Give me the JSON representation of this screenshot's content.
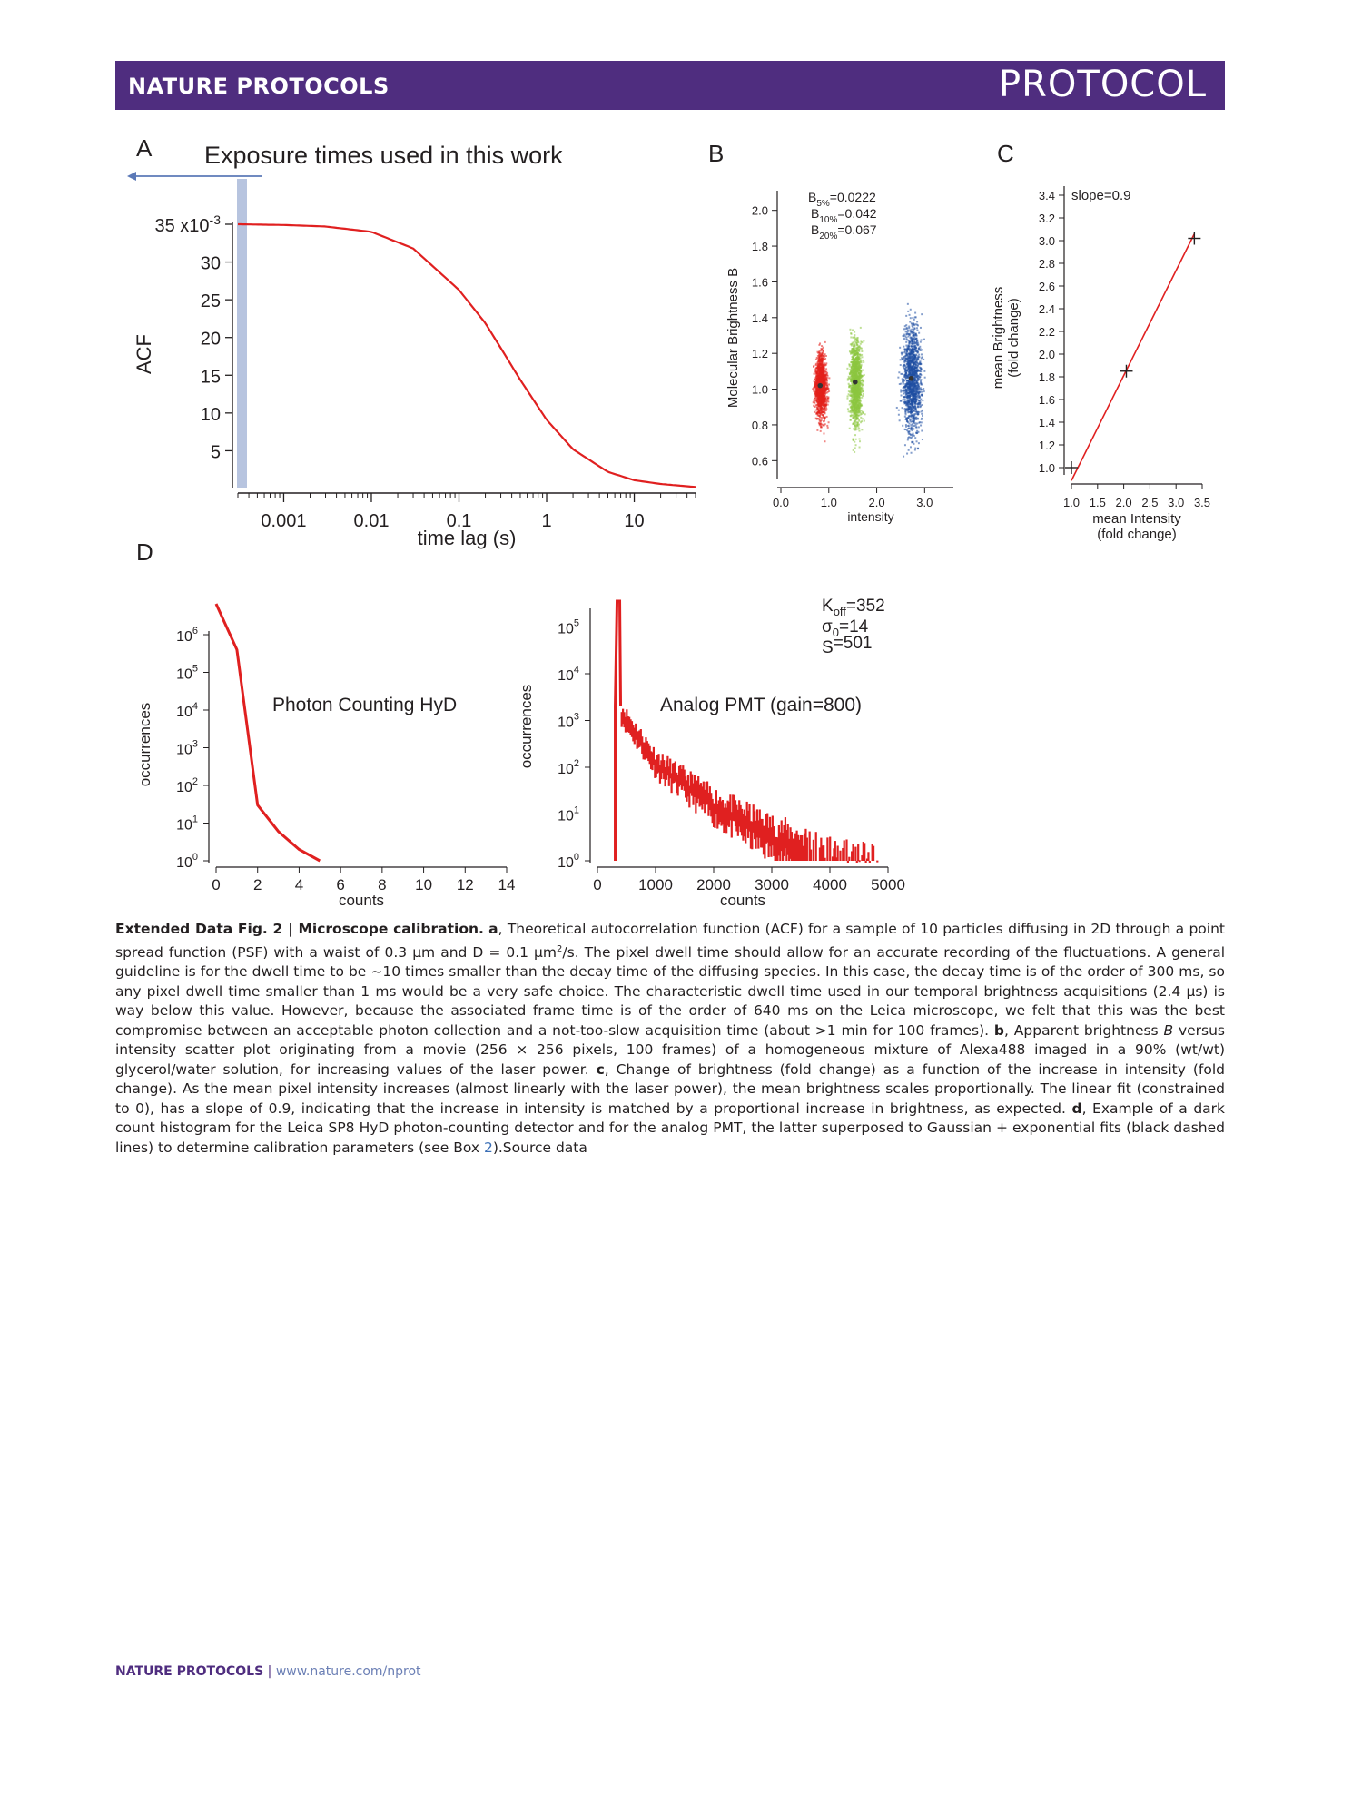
{
  "header": {
    "journal": "NATURE PROTOCOLS",
    "section": "PROTOCOL"
  },
  "panels": {
    "A": {
      "letter": "A",
      "title": "Exposure times used in this work"
    },
    "B": {
      "letter": "B"
    },
    "C": {
      "letter": "C"
    },
    "D": {
      "letter": "D"
    }
  },
  "chart_data": [
    {
      "panel": "A",
      "type": "line",
      "title": "Exposure times used in this work",
      "xlabel": "time lag (s)",
      "ylabel": "ACF",
      "x_scale": "log",
      "xlim": [
        0.0003,
        50
      ],
      "ylim": [
        0,
        0.035
      ],
      "x_ticks": [
        "0.001",
        "0.01",
        "0.1",
        "1",
        "10"
      ],
      "y_ticks": [
        "35 x10",
        "30",
        "25",
        "20",
        "15",
        "10",
        "5"
      ],
      "y_tick_exponent": "-3",
      "series": [
        {
          "x": [
            0.0003,
            0.001,
            0.003,
            0.01,
            0.03,
            0.1,
            0.2,
            0.3,
            0.5,
            1,
            2,
            5,
            10,
            20,
            50
          ],
          "y": [
            0.035,
            0.0349,
            0.0347,
            0.034,
            0.0318,
            0.0263,
            0.0219,
            0.0186,
            0.0144,
            0.0091,
            0.0052,
            0.0022,
            0.0011,
            0.0006,
            0.0002
          ],
          "color": "#e02020"
        }
      ],
      "highlight_band_x": [
        0.0003,
        0.00045
      ],
      "highlight_color": "#b7c4df"
    },
    {
      "panel": "B",
      "type": "scatter",
      "xlabel": "intensity",
      "ylabel": "Molecular Brightness B",
      "xlim": [
        0,
        3.6
      ],
      "ylim": [
        0.5,
        2.1
      ],
      "x_ticks": [
        "0.0",
        "1.0",
        "2.0",
        "3.0"
      ],
      "y_ticks": [
        "2.0",
        "1.8",
        "1.6",
        "1.4",
        "1.2",
        "1.0",
        "0.8",
        "0.6"
      ],
      "annotations": [
        {
          "main": "B",
          "sub": "5%",
          "rest": "=0.0222"
        },
        {
          "main": "B",
          "sub": "10%",
          "rest": "=0.042"
        },
        {
          "main": "B",
          "sub": "20%",
          "rest": "=0.067"
        }
      ],
      "series": [
        {
          "name": "5%",
          "color": "#e3201b",
          "center": [
            0.82,
            1.02
          ],
          "spread": [
            0.15,
            0.22
          ]
        },
        {
          "name": "10%",
          "color": "#8cc63f",
          "center": [
            1.55,
            1.04
          ],
          "spread": [
            0.16,
            0.3
          ]
        },
        {
          "name": "20%",
          "color": "#1f4fa3",
          "center": [
            2.72,
            1.06
          ],
          "spread": [
            0.25,
            0.38
          ]
        }
      ]
    },
    {
      "panel": "C",
      "type": "line",
      "xlabel": "mean Intensity (fold change)",
      "xlabel_lines": [
        "mean Intensity",
        "(fold change)"
      ],
      "ylabel_lines": [
        "mean Brightness",
        "(fold change)"
      ],
      "xlim": [
        1.0,
        3.5
      ],
      "ylim": [
        0.95,
        3.4
      ],
      "x_ticks": [
        "1.0",
        "1.5",
        "2.0",
        "2.5",
        "3.0",
        "3.5"
      ],
      "y_ticks": [
        "3.4",
        "3.2",
        "3.0",
        "2.8",
        "2.6",
        "2.4",
        "2.2",
        "2.0",
        "1.8",
        "1.6",
        "1.4",
        "1.2",
        "1.0"
      ],
      "annotation": "slope=0.9",
      "points": {
        "x": [
          1.0,
          2.05,
          3.35
        ],
        "y": [
          1.0,
          1.85,
          3.02
        ]
      },
      "fit": {
        "x": [
          1.0,
          3.35
        ],
        "y": [
          0.95,
          3.06
        ],
        "color": "#e02020"
      }
    },
    {
      "panel": "D-left",
      "type": "line",
      "title": "Photon Counting HyD",
      "xlabel": "counts",
      "ylabel": "occurrences",
      "y_scale": "log",
      "xlim": [
        0,
        14
      ],
      "ylim": [
        1,
        10000000
      ],
      "x_ticks": [
        "0",
        "2",
        "4",
        "6",
        "8",
        "10",
        "12",
        "14"
      ],
      "y_ticks": [
        {
          "b": "10",
          "e": "6"
        },
        {
          "b": "10",
          "e": "5"
        },
        {
          "b": "10",
          "e": "4"
        },
        {
          "b": "10",
          "e": "3"
        },
        {
          "b": "10",
          "e": "2"
        },
        {
          "b": "10",
          "e": "1"
        },
        {
          "b": "10",
          "e": "0"
        }
      ],
      "series": [
        {
          "x": [
            0,
            1,
            2,
            3,
            4,
            5
          ],
          "y": [
            12000000,
            400000,
            30,
            6,
            2,
            1
          ],
          "color": "#e02020"
        }
      ]
    },
    {
      "panel": "D-right",
      "type": "bar",
      "title": "Analog PMT (gain=800)",
      "xlabel": "counts",
      "ylabel": "occurrences",
      "y_scale": "log",
      "xlim": [
        0,
        5000
      ],
      "ylim": [
        1,
        500000
      ],
      "x_ticks": [
        "0",
        "1000",
        "2000",
        "3000",
        "4000",
        "5000"
      ],
      "y_ticks": [
        {
          "b": "10",
          "e": "5"
        },
        {
          "b": "10",
          "e": "4"
        },
        {
          "b": "10",
          "e": "3"
        },
        {
          "b": "10",
          "e": "2"
        },
        {
          "b": "10",
          "e": "1"
        },
        {
          "b": "10",
          "e": "0"
        }
      ],
      "params": [
        {
          "main": "K",
          "sub": "off",
          "rest": "=352"
        },
        {
          "main": "σ",
          "sub": "0",
          "rest": "=14"
        },
        {
          "main": "S",
          "sub": "",
          "rest": "=501"
        }
      ],
      "peak": {
        "x": 352,
        "y": 500000
      },
      "tail": {
        "x": [
          400,
          1000,
          2000,
          3000,
          4000,
          4800
        ],
        "y": [
          2000,
          180,
          25,
          6,
          2,
          1
        ]
      },
      "color": "#e02020"
    }
  ],
  "caption": {
    "fig_label": "Extended Data Fig. 2 | Microscope calibration.",
    "a_label": "a",
    "a_text_1": ", Theoretical autocorrelation function (ACF) for a sample of 10 particles diffusing in 2D through a point spread function (PSF) with a waist of 0.3 μm and D = 0.1 μm",
    "a_sup": "2",
    "a_text_2": "/s. The pixel dwell time should allow for an accurate recording of the fluctuations. A general guideline is for the dwell time to be ~10 times smaller than the decay time of the diffusing species. In this case, the decay time is of the order of 300 ms, so any pixel dwell time smaller than 1 ms would be a very safe choice. The characteristic dwell time used in our temporal brightness acquisitions (2.4 μs) is way below this value. However, because the associated frame time is of the order of 640 ms on the Leica microscope, we felt that this was the best compromise between an acceptable photon collection and a not-too-slow acquisition time (about >1 min for 100 frames). ",
    "b_label": "b",
    "b_text_1": ", Apparent brightness ",
    "b_italic": "B",
    "b_text_2": " versus intensity scatter plot originating from a movie (256 × 256 pixels, 100 frames) of a homogeneous mixture of Alexa488 imaged in a 90% (wt/wt) glycerol/water solution, for increasing values of the laser power. ",
    "c_label": "c",
    "c_text": ", Change of brightness (fold change) as a function of the increase in intensity (fold change). As the mean pixel intensity increases (almost linearly with the laser power), the mean brightness scales proportionally. The linear fit (constrained to 0), has a slope of 0.9, indicating that the increase in intensity is matched by a proportional increase in brightness, as expected. ",
    "d_label": "d",
    "d_text_1": ", Example of a dark count histogram for the Leica SP8 HyD photon-counting detector and for the analog PMT, the latter superposed to Gaussian + exponential fits (black dashed lines) to determine calibration parameters (see Box ",
    "d_link": "2",
    "d_text_2": ").Source data"
  },
  "footer": {
    "journal": "NATURE PROTOCOLS",
    "separator": " | ",
    "url": "www.nature.com/nprot"
  }
}
